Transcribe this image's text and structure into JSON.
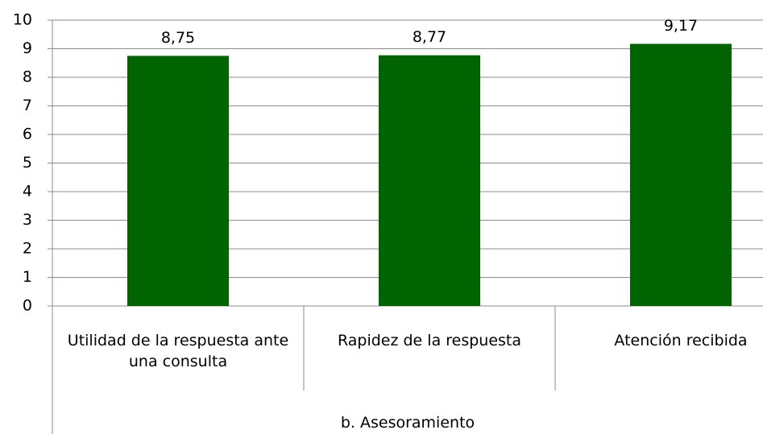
{
  "chart_data": {
    "type": "bar",
    "categories": [
      "Utilidad de la respuesta ante una consulta",
      "Rapidez de la respuesta",
      "Atención recibida"
    ],
    "group_label": "b. Asesoramiento",
    "values": [
      8.75,
      8.77,
      9.17
    ],
    "value_labels": [
      "8,75",
      "8,77",
      "9,17"
    ],
    "color": "#006400",
    "ylim": [
      0,
      10
    ],
    "yticks": [
      0,
      1,
      2,
      3,
      4,
      5,
      6,
      7,
      8,
      9,
      10
    ],
    "grid": true
  }
}
